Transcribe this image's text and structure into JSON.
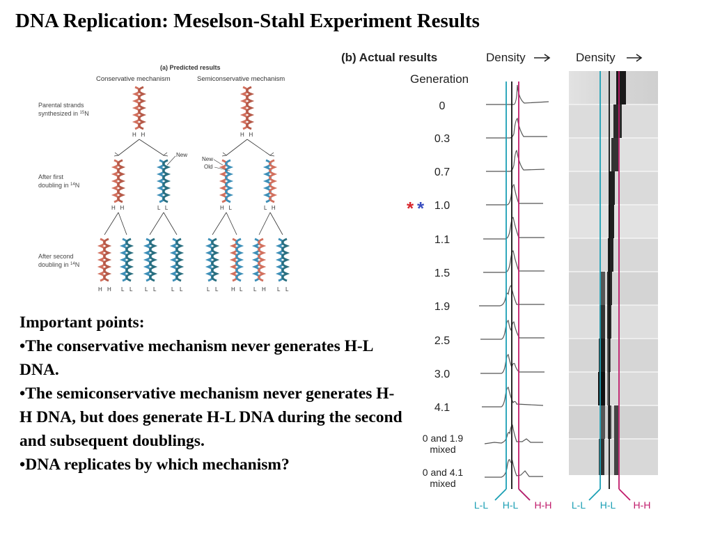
{
  "slide_title": "DNA Replication: Meselson-Stahl Experiment Results",
  "predicted": {
    "heading": "(a) Predicted results",
    "conservative_label": "Conservative mechanism",
    "semiconservative_label": "Semiconservative mechanism",
    "row1_label_a": "Parental strands",
    "row1_label_b": "synthesized in ",
    "row1_isotope": "15",
    "row1_element": "N",
    "row2_label_a": "After first",
    "row2_label_b": "doubling in ",
    "row2_isotope": "14",
    "row2_element": "N",
    "row3_label_a": "After second",
    "row3_label_b": "doubling in ",
    "row3_isotope": "14",
    "row3_element": "N",
    "new_label": "New",
    "new_label_2": "New",
    "old_label": "Old",
    "cons_parent_strands": "H   H",
    "semi_parent_strands": "H   H",
    "cons_gen1": [
      "H   H",
      "L   L"
    ],
    "semi_gen1": [
      "H   L",
      "L   H"
    ],
    "cons_gen2": [
      "H",
      "H",
      "L",
      "L",
      "L",
      "L",
      "L",
      "L"
    ],
    "semi_gen2": [
      "L",
      "L",
      "H",
      "L",
      "L",
      "H",
      "L",
      "L"
    ],
    "colors": {
      "heavy": "#d2705e",
      "light_new": "#3d8fb8",
      "light_dark": "#2a6f80"
    }
  },
  "actual": {
    "heading": "(b) Actual results",
    "density_label_1": "Density",
    "density_label_2": "Density",
    "generation_header": "Generation",
    "generations": [
      "0",
      "0.3",
      "0.7",
      "1.0",
      "1.1",
      "1.5",
      "1.9",
      "2.5",
      "3.0",
      "4.1",
      "0 and 1.9",
      "0 and 4.1"
    ],
    "mixed_label_1": "mixed",
    "mixed_label_2": "mixed",
    "markers": {
      "red_star": "*",
      "blue_star": "*"
    },
    "bottom_labels_left": [
      "L-L",
      "H-L",
      "H-H"
    ],
    "bottom_labels_right": [
      "L-L",
      "H-L",
      "H-H"
    ],
    "colors": {
      "ll_line": "#1a9fb4",
      "hh_line": "#c01a6a",
      "red_star": "#d8282e",
      "blue_star": "#3a4ec0"
    }
  },
  "important_points": {
    "header": "Important points:",
    "bullet": "•",
    "items": [
      "The conservative mechanism never generates H-L DNA.",
      "The semiconservative mechanism never generates H-H DNA, but does generate H-L DNA during the second and subsequent doublings.",
      "DNA replicates by which mechanism?"
    ]
  }
}
